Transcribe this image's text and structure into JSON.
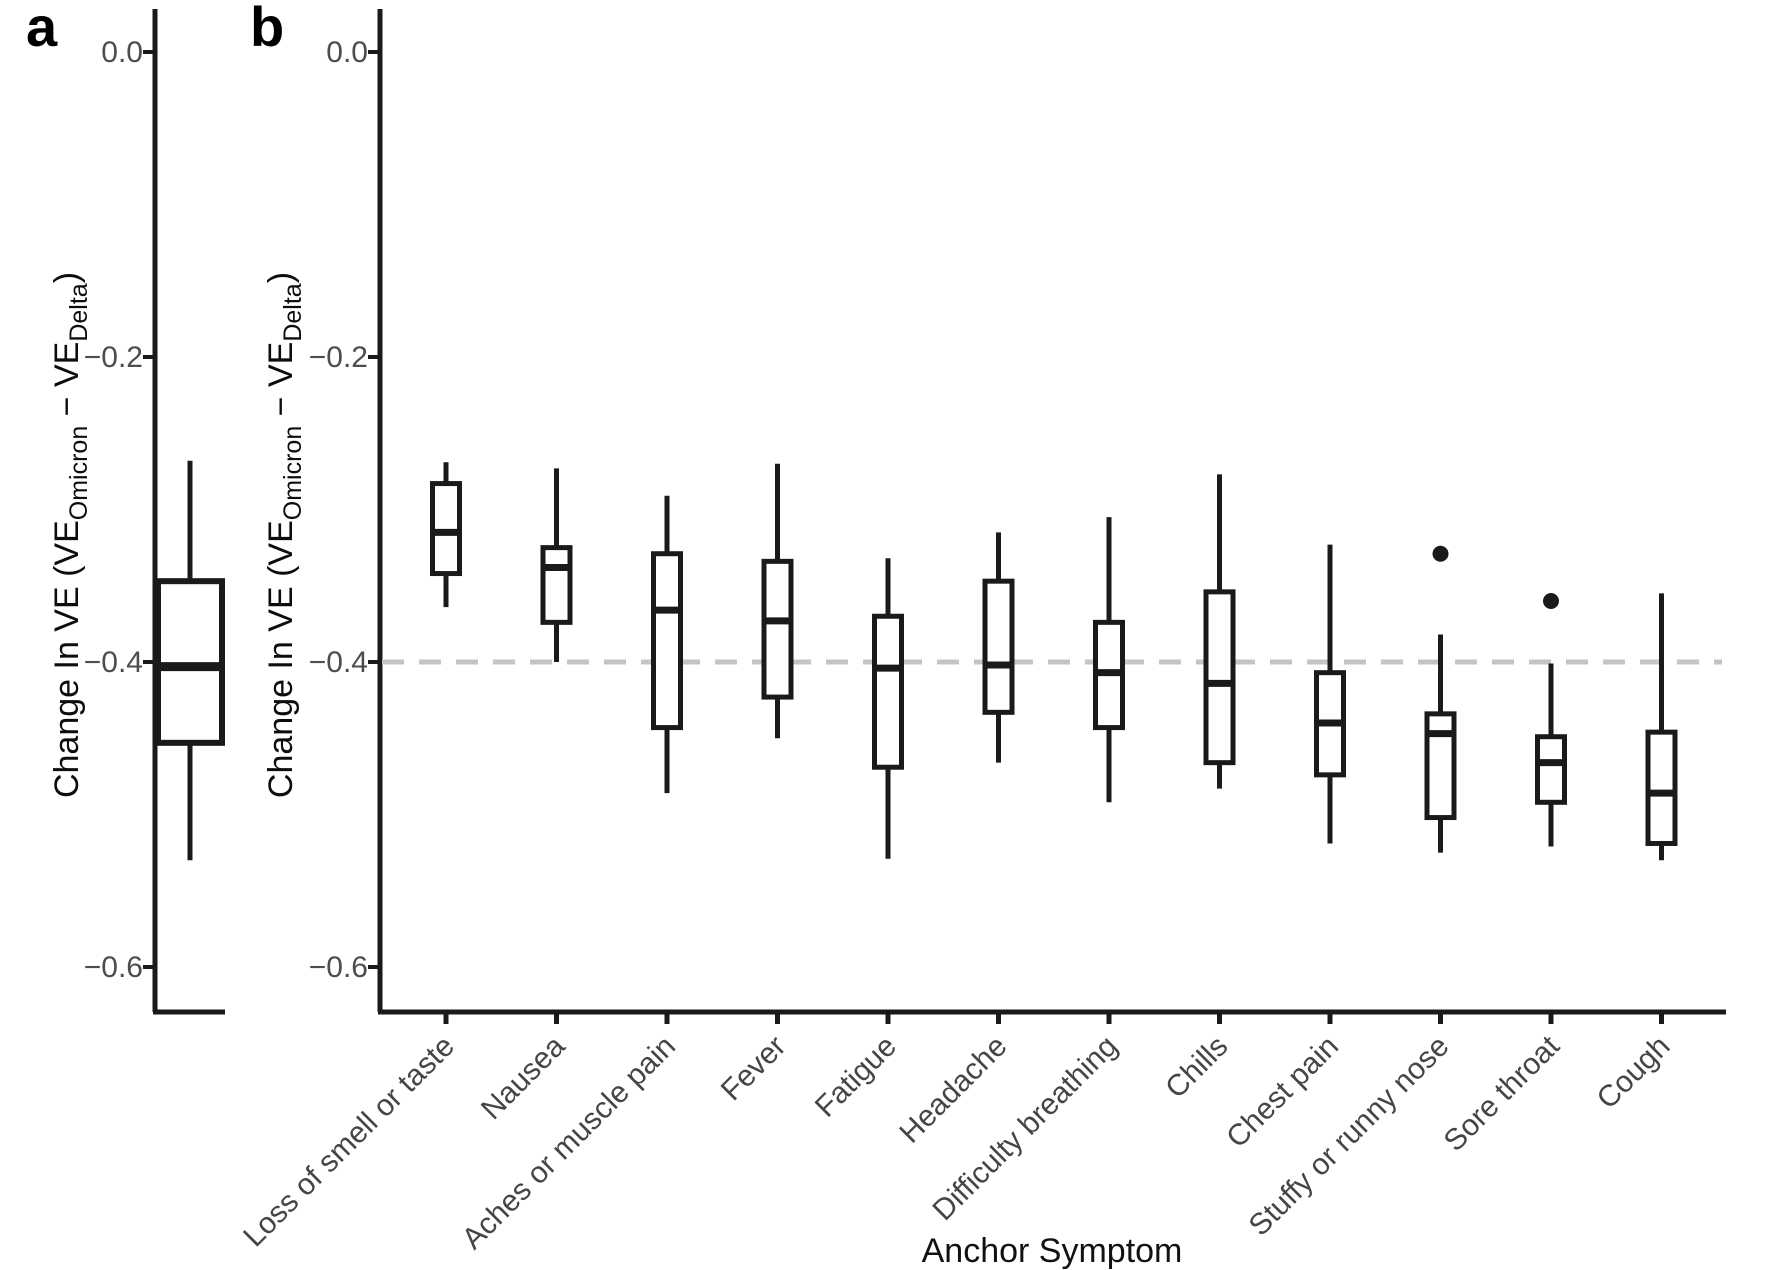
{
  "figure": {
    "panel_a_label": "a",
    "panel_b_label": "b",
    "x_axis_title": "Anchor Symptom",
    "y_axis_title_text": "Change In VE (VEOmicron − VEDelta)",
    "y_axis_title_parts": [
      {
        "t": "Change In VE (VE",
        "sub": false
      },
      {
        "t": "Omicron",
        "sub": true
      },
      {
        "t": " − VE",
        "sub": false
      },
      {
        "t": "Delta",
        "sub": true
      },
      {
        "t": ")",
        "sub": false
      }
    ],
    "colors": {
      "axis": "#1a1a1a",
      "box_stroke": "#1a1a1a",
      "box_fill": "#ffffff",
      "tick_label": "#4d4d4d",
      "x_label": "#454545",
      "dashed_reference": "#c4c4c4",
      "outlier": "#1a1a1a",
      "background": "#ffffff"
    }
  },
  "chart_data": [
    {
      "id": "panel_a",
      "type": "boxplot",
      "title": "",
      "xlabel": "",
      "ylabel": "Change In VE (VEOmicron − VEDelta)",
      "ylim": [
        -0.63,
        0.03
      ],
      "ytick_values": [
        0.0,
        -0.2,
        -0.4,
        -0.6
      ],
      "ytick_labels": [
        "0.0",
        "−0.2",
        "−0.4",
        "−0.6"
      ],
      "grid": false,
      "reference_line_y": null,
      "boxes": [
        {
          "category": "",
          "whisker_low": -0.53,
          "q1": -0.453,
          "median": -0.403,
          "q3": -0.347,
          "whisker_high": -0.268,
          "outliers": []
        }
      ]
    },
    {
      "id": "panel_b",
      "type": "boxplot",
      "title": "",
      "xlabel": "Anchor Symptom",
      "ylabel": "Change In VE (VEOmicron − VEDelta)",
      "ylim": [
        -0.63,
        0.03
      ],
      "ytick_values": [
        0.0,
        -0.2,
        -0.4,
        -0.6
      ],
      "ytick_labels": [
        "0.0",
        "−0.2",
        "−0.4",
        "−0.6"
      ],
      "grid": false,
      "reference_line_y": -0.4,
      "boxes": [
        {
          "category": "Loss of smell or taste",
          "whisker_low": -0.364,
          "q1": -0.342,
          "median": -0.315,
          "q3": -0.283,
          "whisker_high": -0.269,
          "outliers": []
        },
        {
          "category": "Nausea",
          "whisker_low": -0.4,
          "q1": -0.374,
          "median": -0.338,
          "q3": -0.325,
          "whisker_high": -0.273,
          "outliers": []
        },
        {
          "category": "Aches or muscle pain",
          "whisker_low": -0.486,
          "q1": -0.443,
          "median": -0.366,
          "q3": -0.329,
          "whisker_high": -0.291,
          "outliers": []
        },
        {
          "category": "Fever",
          "whisker_low": -0.45,
          "q1": -0.423,
          "median": -0.373,
          "q3": -0.334,
          "whisker_high": -0.27,
          "outliers": []
        },
        {
          "category": "Fatigue",
          "whisker_low": -0.529,
          "q1": -0.469,
          "median": -0.404,
          "q3": -0.37,
          "whisker_high": -0.332,
          "outliers": []
        },
        {
          "category": "Headache",
          "whisker_low": -0.466,
          "q1": -0.433,
          "median": -0.402,
          "q3": -0.347,
          "whisker_high": -0.315,
          "outliers": []
        },
        {
          "category": "Difficulty breathing",
          "whisker_low": -0.492,
          "q1": -0.443,
          "median": -0.407,
          "q3": -0.374,
          "whisker_high": -0.305,
          "outliers": []
        },
        {
          "category": "Chills",
          "whisker_low": -0.483,
          "q1": -0.466,
          "median": -0.414,
          "q3": -0.354,
          "whisker_high": -0.277,
          "outliers": []
        },
        {
          "category": "Chest pain",
          "whisker_low": -0.519,
          "q1": -0.474,
          "median": -0.44,
          "q3": -0.407,
          "whisker_high": -0.323,
          "outliers": []
        },
        {
          "category": "Stuffy or runny nose",
          "whisker_low": -0.525,
          "q1": -0.502,
          "median": -0.447,
          "q3": -0.434,
          "whisker_high": -0.382,
          "outliers": [
            -0.329
          ]
        },
        {
          "category": "Sore throat",
          "whisker_low": -0.521,
          "q1": -0.492,
          "median": -0.466,
          "q3": -0.449,
          "whisker_high": -0.401,
          "outliers": [
            -0.36
          ]
        },
        {
          "category": "Cough",
          "whisker_low": -0.53,
          "q1": -0.519,
          "median": -0.486,
          "q3": -0.446,
          "whisker_high": -0.355,
          "outliers": []
        }
      ]
    }
  ]
}
